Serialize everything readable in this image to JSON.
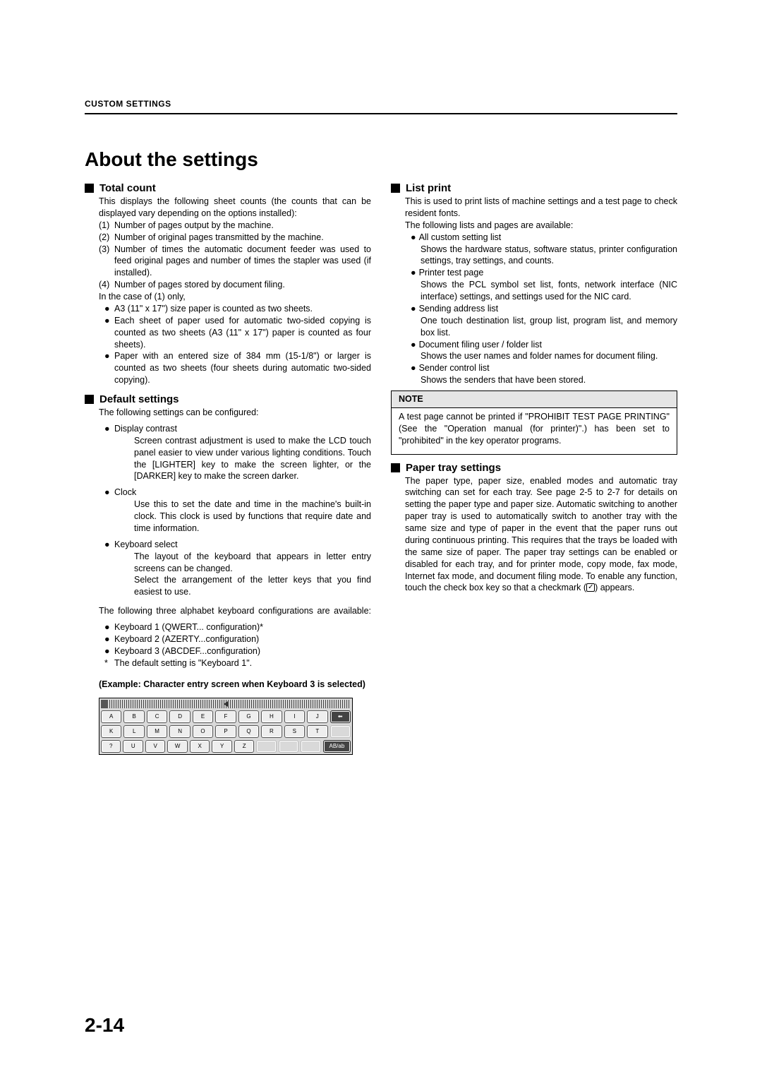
{
  "header": {
    "label": "CUSTOM SETTINGS"
  },
  "title": "About the settings",
  "page_number": "2-14",
  "total_count": {
    "heading": "Total count",
    "intro": "This displays the following sheet counts (the counts that can be displayed vary depending on the options installed):",
    "items": [
      "Number of pages output by the machine.",
      "Number of original pages transmitted by the machine.",
      "Number of times the automatic document feeder was used to feed original pages and number of times the stapler was used (if installed).",
      "Number of pages stored by document filing."
    ],
    "sub_intro": "In the case of (1) only,",
    "bullets": [
      "A3 (11\" x 17\") size paper is counted as two sheets.",
      "Each sheet of paper used for automatic two-sided copying is counted as two sheets (A3 (11\" x 17\") paper is counted as four sheets).",
      "Paper with an entered size of 384 mm (15-1/8\") or larger is counted as two sheets (four sheets during automatic two-sided copying)."
    ]
  },
  "default_settings": {
    "heading": "Default settings",
    "intro": "The following settings can be configured:",
    "items": [
      {
        "name": "Display contrast",
        "desc": "Screen contrast adjustment is used to make the LCD touch panel easier to view under various lighting conditions. Touch the [LIGHTER] key to make the screen lighter, or the [DARKER] key to make the screen darker."
      },
      {
        "name": "Clock",
        "desc": "Use this to set the date and time in the machine's built-in clock. This clock is used by functions that require date and time information."
      },
      {
        "name": "Keyboard select",
        "desc": "The layout of the keyboard that appears in letter entry screens can be changed.\nSelect the arrangement of the letter keys that you find easiest to use."
      }
    ],
    "kb_intro": "The following three alphabet keyboard configurations are available:",
    "kb_options": [
      "Keyboard 1 (QWERT... configuration)*",
      "Keyboard 2 (AZERTY...configuration)",
      "Keyboard 3 (ABCDEF...configuration)"
    ],
    "kb_footnote": "The default setting is \"Keyboard  1\".",
    "example_label": "(Example: Character entry screen when Keyboard  3 is selected)",
    "kb_rows": [
      [
        "A",
        "B",
        "C",
        "D",
        "E",
        "F",
        "G",
        "H",
        "I",
        "J",
        "⬅"
      ],
      [
        "K",
        "L",
        "M",
        "N",
        "O",
        "P",
        "Q",
        "R",
        "S",
        "T",
        ""
      ],
      [
        "?",
        "U",
        "V",
        "W",
        "X",
        "Y",
        "Z",
        "",
        "",
        "",
        "AB/ab"
      ]
    ]
  },
  "list_print": {
    "heading": "List print",
    "intro": "This is used to print lists of machine settings and a test page to check resident fonts.",
    "intro2": "The following lists and pages are available:",
    "items": [
      {
        "name": "All custom setting list",
        "desc": "Shows the hardware status, software status, printer configuration settings, tray settings, and counts."
      },
      {
        "name": "Printer test page",
        "desc": "Shows the PCL symbol set list, fonts, network interface (NIC interface) settings, and settings used for the NIC card."
      },
      {
        "name": "Sending address list",
        "desc": "One touch destination list, group list, program list, and memory box list."
      },
      {
        "name": "Document filing user / folder list",
        "desc": "Shows the user names and folder names for document filing."
      },
      {
        "name": "Sender control list",
        "desc": "Shows the senders that have been stored."
      }
    ],
    "note_label": "NOTE",
    "note": "A test page cannot be printed if \"PROHIBIT TEST PAGE PRINTING\" (See the \"Operation manual (for printer)\".) has been set to \"prohibited\" in the key operator programs."
  },
  "paper_tray": {
    "heading": "Paper tray settings",
    "body_pre": "The paper type, paper size, enabled modes and automatic tray switching can set for each tray. See page 2-5 to 2-7 for details on setting the paper type and paper size. Automatic switching to another paper tray is used to automatically switch to another tray with the same size and type of paper in the event that the paper runs out during continuous printing. This requires that the trays be loaded with the same size of paper. The paper tray settings can be enabled or disabled for each tray, and for printer mode, copy mode, fax mode, Internet fax mode, and document filing mode. To enable any function, touch the check box key so that a checkmark (",
    "body_post": ") appears."
  }
}
